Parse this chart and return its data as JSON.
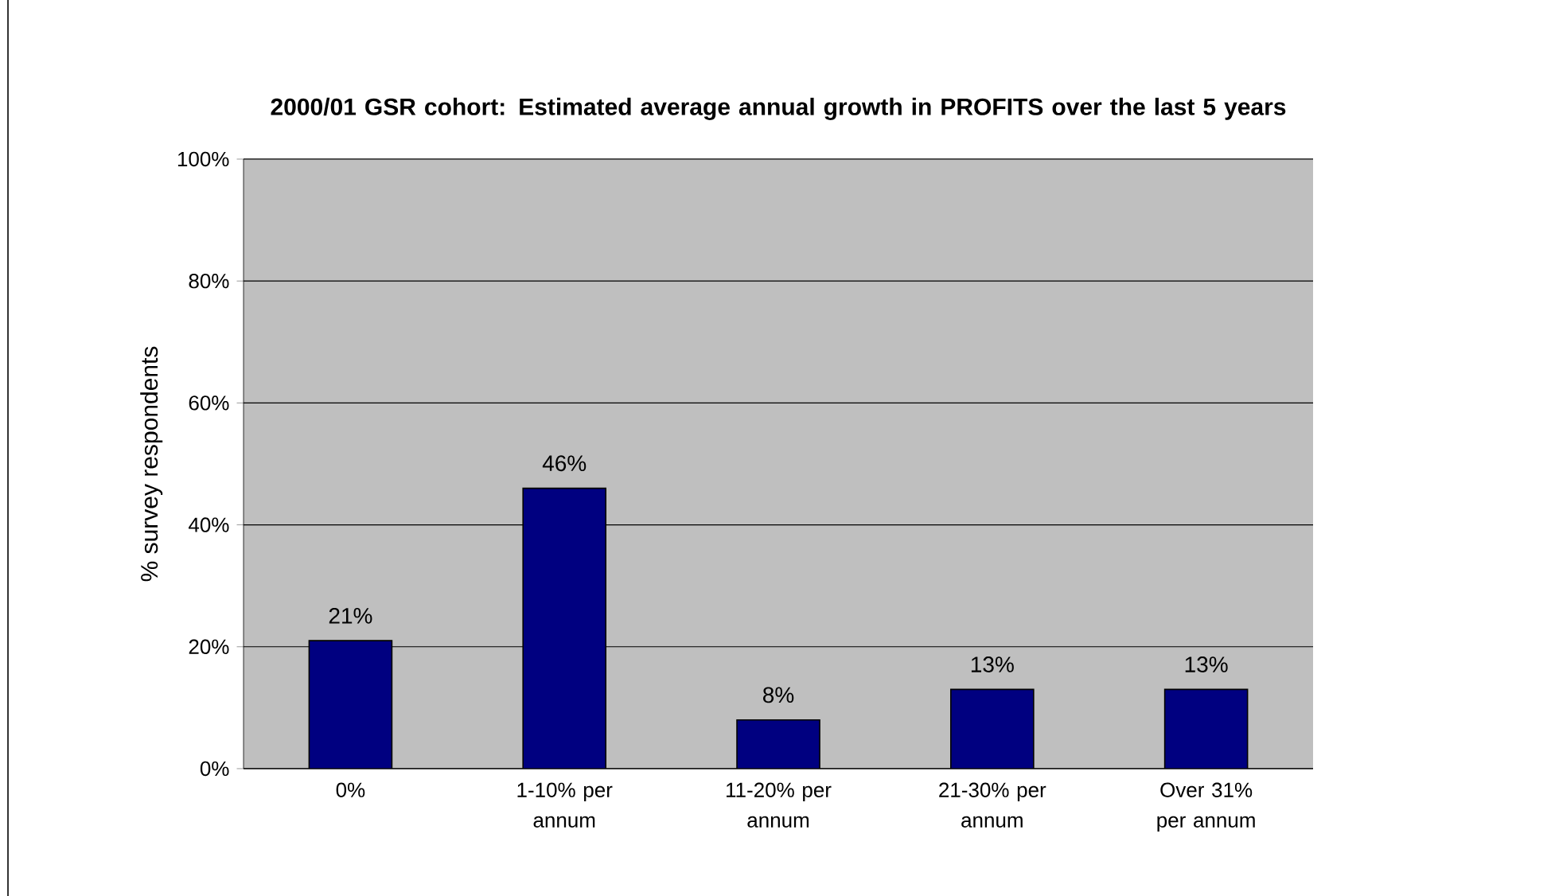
{
  "chart_data": {
    "type": "bar",
    "title": "2000/01 GSR cohort: Estimated average annual growth in PROFITS over the last 5 years",
    "ylabel": "% survey respondents",
    "categories": [
      "0%",
      "1-10% per annum",
      "11-20% per annum",
      "21-30% per annum",
      "Over 31% per annum"
    ],
    "values": [
      21,
      46,
      8,
      13,
      13
    ],
    "value_labels": [
      "21%",
      "46%",
      "8%",
      "13%",
      "13%"
    ],
    "color": "#000080",
    "ylim": [
      0,
      100
    ],
    "yticks": [
      {
        "value": 0,
        "label": "0%"
      },
      {
        "value": 20,
        "label": "20%"
      },
      {
        "value": 40,
        "label": "40%"
      },
      {
        "value": 60,
        "label": "60%"
      },
      {
        "value": 80,
        "label": "80%"
      },
      {
        "value": 100,
        "label": "100%"
      }
    ],
    "grid": "y"
  }
}
